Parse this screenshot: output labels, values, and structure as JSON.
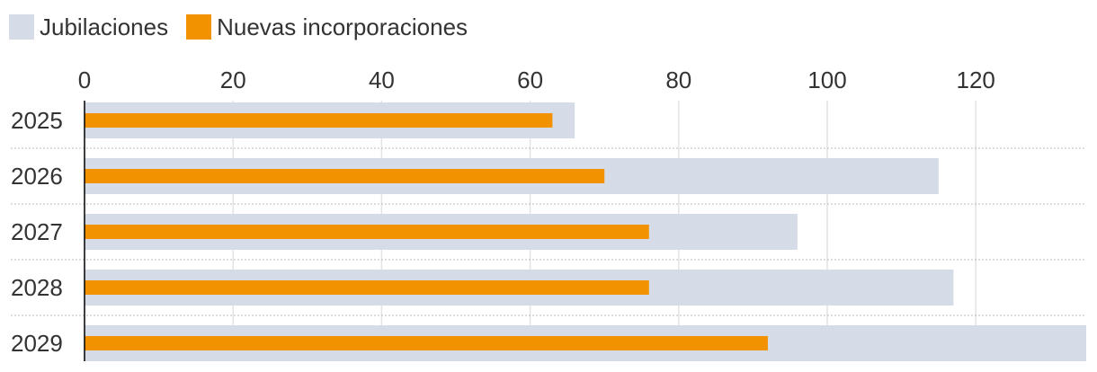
{
  "legend": {
    "items": [
      {
        "label": "Jubilaciones",
        "color": "#d6dce7"
      },
      {
        "label": "Nuevas incorporaciones",
        "color": "#f39200"
      }
    ]
  },
  "chart_data": {
    "type": "bar",
    "orientation": "horizontal",
    "categories": [
      "2025",
      "2026",
      "2027",
      "2028",
      "2029"
    ],
    "series": [
      {
        "name": "Jubilaciones",
        "color": "#d6dce7",
        "values": [
          66,
          115,
          96,
          117,
          137
        ]
      },
      {
        "name": "Nuevas incorporaciones",
        "color": "#f39200",
        "values": [
          63,
          70,
          76,
          76,
          92
        ]
      }
    ],
    "xticks": [
      0,
      20,
      40,
      60,
      80,
      100,
      120
    ],
    "xlim": [
      0,
      135
    ],
    "grid": true,
    "legend_position": "top-left"
  }
}
